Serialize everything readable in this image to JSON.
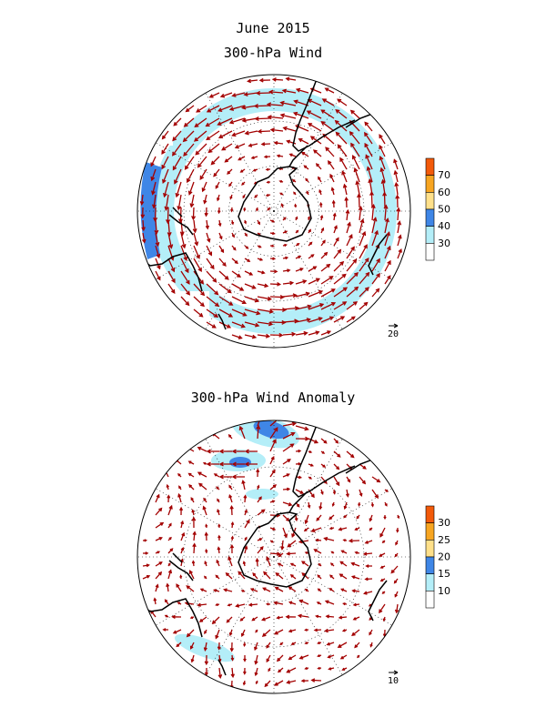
{
  "page": {
    "month_title": "June 2015"
  },
  "panels": [
    {
      "id": "wind",
      "title": "300-hPa Wind",
      "reference_vector_label": "20",
      "colorbar": {
        "tick_labels": [
          "30",
          "40",
          "50",
          "60",
          "70"
        ],
        "colors": [
          "#ffffff",
          "#b4eef8",
          "#3f86e6",
          "#ffe08a",
          "#f7a521",
          "#f25a0a"
        ]
      }
    },
    {
      "id": "anomaly",
      "title": "300-hPa Wind Anomaly",
      "reference_vector_label": "10",
      "colorbar": {
        "tick_labels": [
          "10",
          "15",
          "20",
          "25",
          "30"
        ],
        "colors": [
          "#ffffff",
          "#b4eef8",
          "#3f86e6",
          "#ffe08a",
          "#f7a521",
          "#f25a0a"
        ]
      }
    }
  ],
  "style": {
    "arrow_color": "#a30000",
    "shade_light": "#b4eef8",
    "shade_dark": "#3f86e6",
    "coast_color": "#000000",
    "grid_color": "#000000"
  }
}
